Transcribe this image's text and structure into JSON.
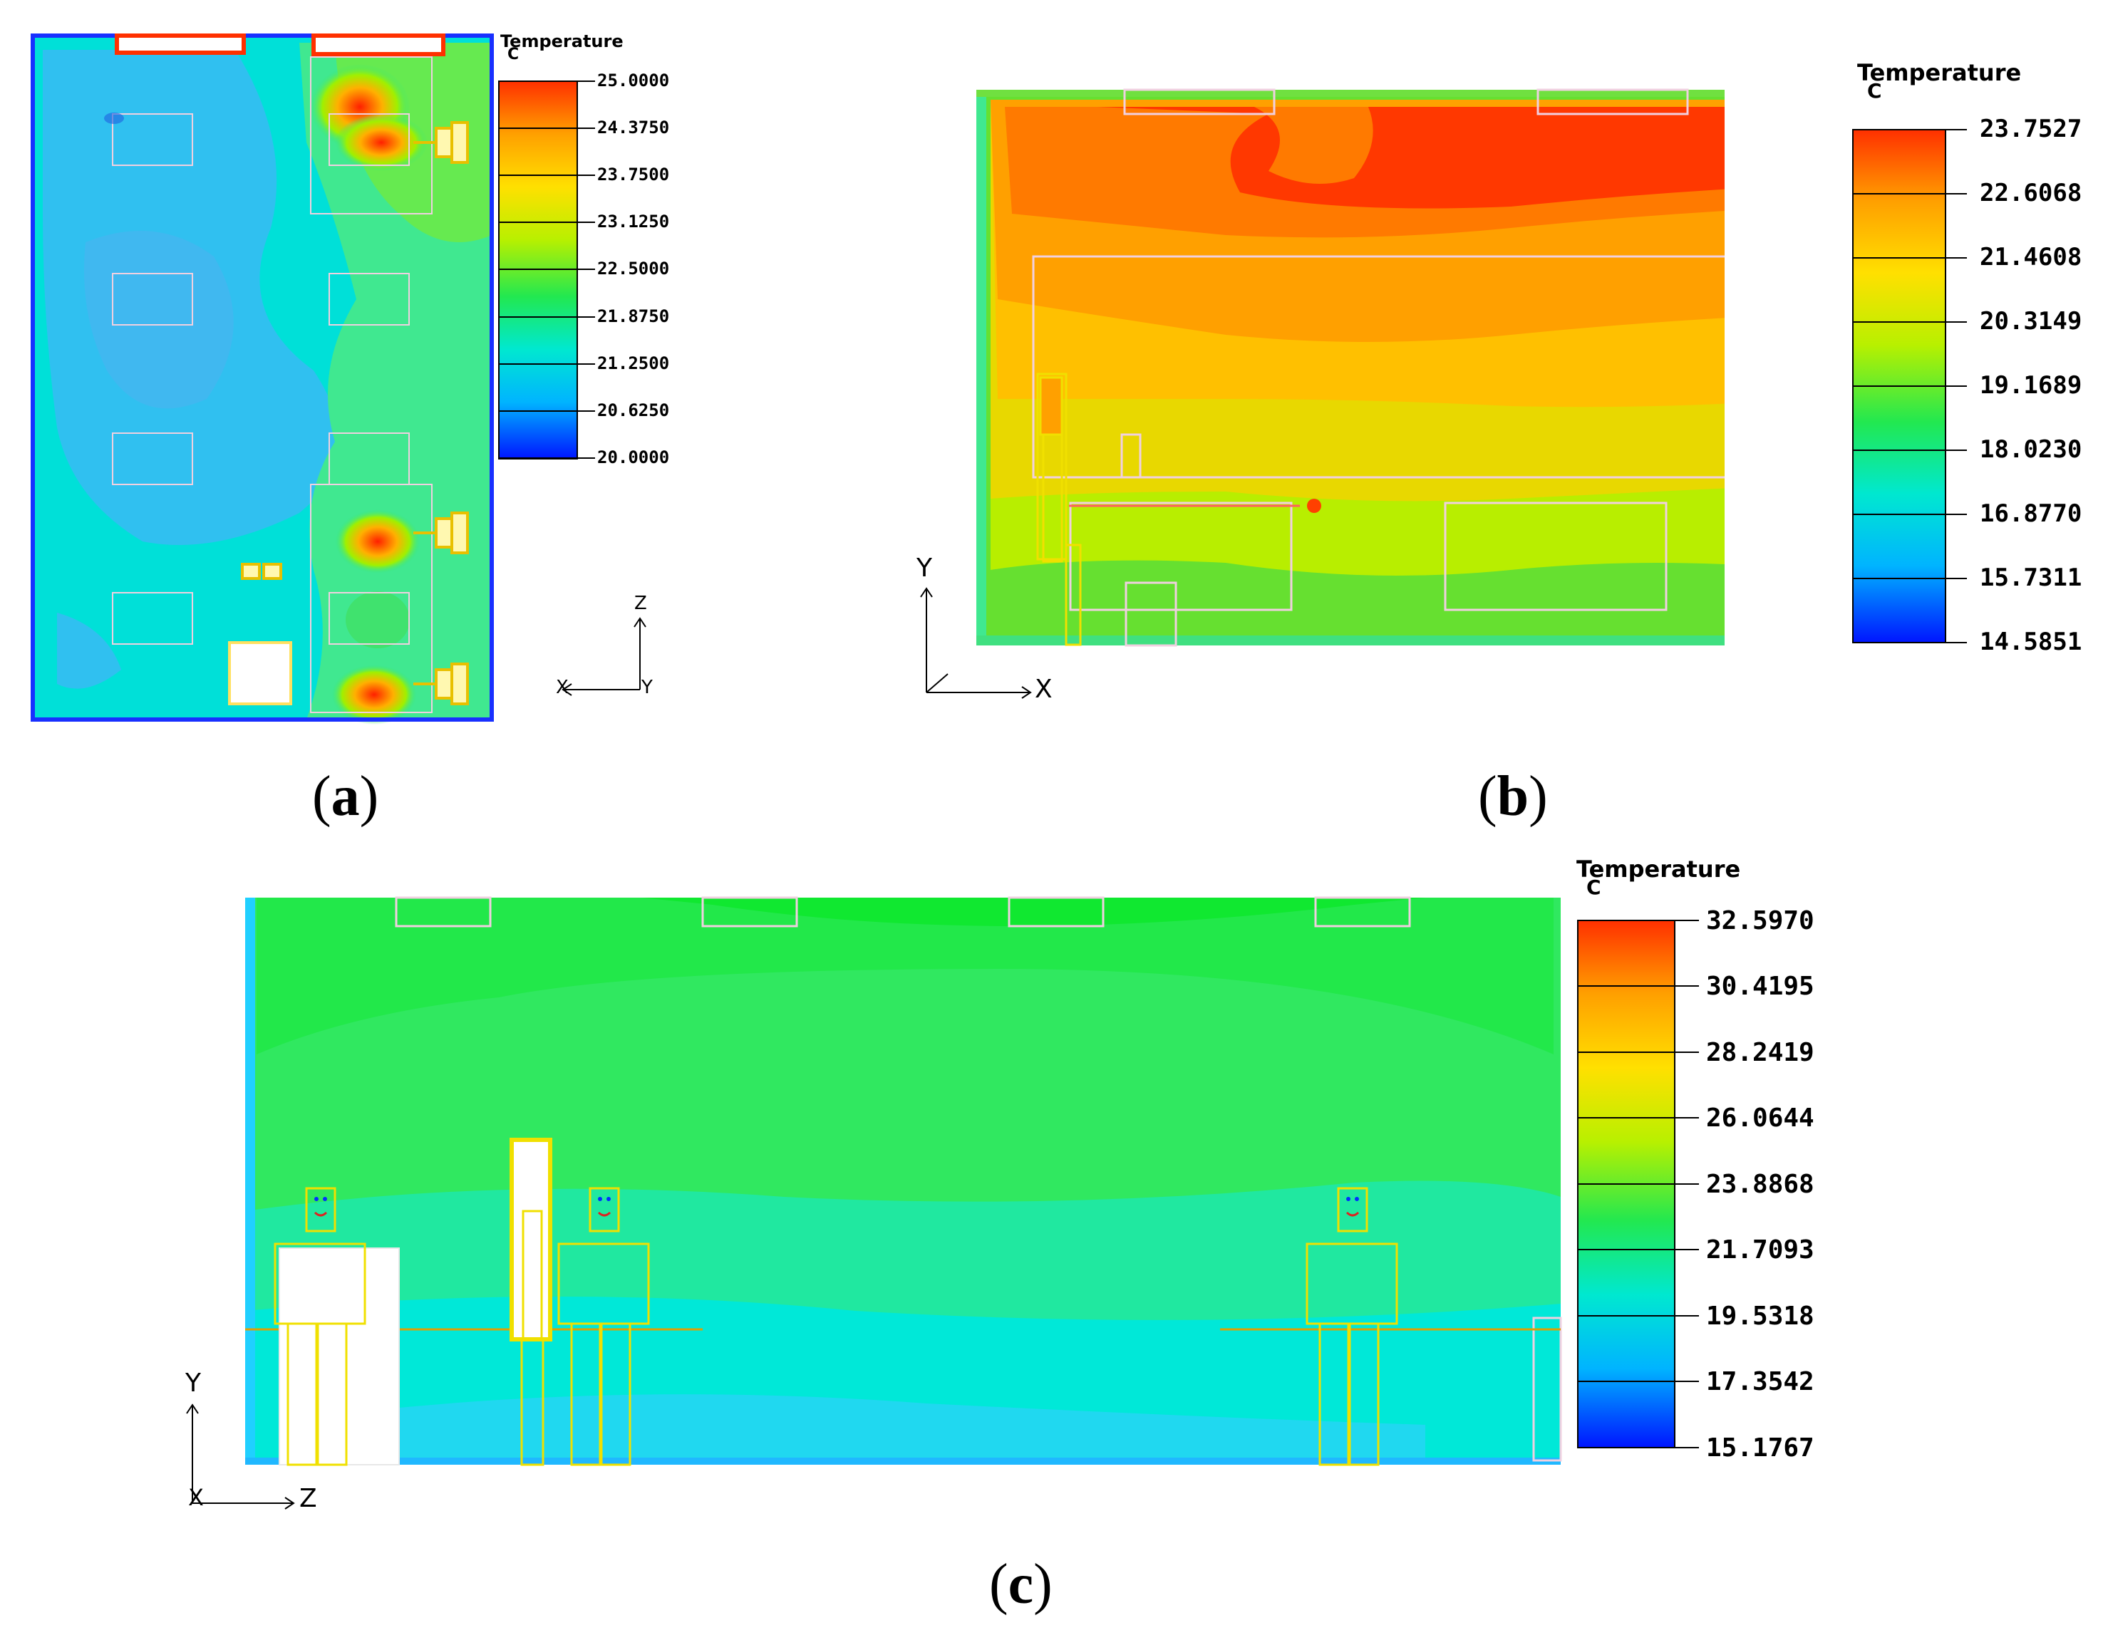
{
  "colors": {
    "scale": [
      "#0015ff",
      "#00b4ff",
      "#00e8d0",
      "#22e850",
      "#b8f000",
      "#ffe000",
      "#ffa000",
      "#ff3000"
    ]
  },
  "panels": [
    {
      "id": "a",
      "caption": "a",
      "legend": {
        "title": "Temperature",
        "unit": "C",
        "ticks": [
          "25.0000",
          "24.3750",
          "23.7500",
          "23.1250",
          "22.5000",
          "21.8750",
          "21.2500",
          "20.6250",
          "20.0000"
        ]
      },
      "axes": {
        "h": "X",
        "v": "Z",
        "depth": "Y"
      }
    },
    {
      "id": "b",
      "caption": "b",
      "legend": {
        "title": "Temperature",
        "unit": "C",
        "ticks": [
          "23.7527",
          "22.6068",
          "21.4608",
          "20.3149",
          "19.1689",
          "18.0230",
          "16.8770",
          "15.7311",
          "14.5851"
        ]
      },
      "axes": {
        "h": "X",
        "v": "Y"
      }
    },
    {
      "id": "c",
      "caption": "c",
      "legend": {
        "title": "Temperature",
        "unit": "C",
        "ticks": [
          "32.5970",
          "30.4195",
          "28.2419",
          "26.0644",
          "23.8868",
          "21.7093",
          "19.5318",
          "17.3542",
          "15.1767"
        ]
      },
      "axes": {
        "h": "Z",
        "v": "Y",
        "depth": "X"
      }
    }
  ]
}
